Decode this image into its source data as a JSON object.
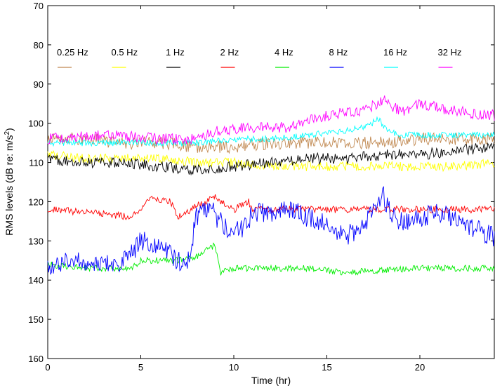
{
  "chart_data": {
    "type": "line",
    "xlabel": "Time (hr)",
    "ylabel_main": "RMS levels (dB re: m/s",
    "ylabel_sup": "2",
    "ylabel_close": ")",
    "xlim": [
      0,
      24
    ],
    "ylim": [
      70,
      160
    ],
    "y_inverted": true,
    "xticks": [
      0,
      5,
      10,
      15,
      20
    ],
    "yticks": [
      70,
      80,
      90,
      100,
      110,
      120,
      130,
      140,
      150,
      160
    ],
    "legend_placement": "top, inside plot",
    "series": [
      {
        "name": "0.25 Hz",
        "color": "#c08850",
        "noise": 1.6,
        "x": [
          0,
          2,
          4,
          6,
          8,
          10,
          12,
          14,
          16,
          18,
          20,
          22,
          24
        ],
        "y": [
          104,
          104,
          105,
          105,
          106,
          106,
          105,
          105,
          105,
          105,
          104,
          104,
          104
        ]
      },
      {
        "name": "0.5 Hz",
        "color": "#ffff00",
        "noise": 1.2,
        "x": [
          0,
          2,
          4,
          6,
          8,
          10,
          12,
          14,
          16,
          18,
          20,
          22,
          24
        ],
        "y": [
          108,
          109,
          109,
          109,
          110,
          110,
          111,
          111,
          111,
          111,
          111,
          111,
          110
        ]
      },
      {
        "name": "1 Hz",
        "color": "#000000",
        "noise": 1.4,
        "x": [
          0,
          2,
          4,
          6,
          8,
          10,
          12,
          14,
          16,
          18,
          20,
          22,
          24
        ],
        "y": [
          109,
          110,
          110,
          111,
          112,
          111,
          110,
          109,
          109,
          108,
          108,
          107,
          106
        ]
      },
      {
        "name": "2 Hz",
        "color": "#ff0000",
        "noise": 0.9,
        "x": [
          0,
          3,
          4.5,
          5.5,
          6.6,
          7,
          8,
          9,
          10,
          10.8,
          11,
          12,
          14,
          17,
          20,
          24
        ],
        "y": [
          122,
          123,
          124,
          119,
          120,
          124,
          121,
          119,
          122,
          120,
          122,
          122,
          122,
          122,
          122,
          122
        ]
      },
      {
        "name": "4 Hz",
        "color": "#00ee00",
        "noise": 0.8,
        "x": [
          0,
          2,
          4.5,
          5,
          7,
          8,
          9,
          9.3,
          10,
          12,
          14,
          16,
          20,
          24
        ],
        "y": [
          136,
          137,
          137,
          135,
          135,
          134,
          131,
          138,
          137,
          137,
          137,
          138,
          137,
          137
        ]
      },
      {
        "name": "8 Hz",
        "color": "#0000ff",
        "noise": 2.6,
        "x": [
          0,
          2,
          4,
          5,
          6,
          7,
          7.5,
          8,
          8.8,
          9,
          10,
          10.5,
          11,
          12,
          13,
          14,
          15,
          16,
          17,
          17.5,
          18,
          18.5,
          19,
          20,
          21,
          22,
          23,
          24
        ],
        "y": [
          136,
          135,
          136,
          130,
          131,
          135,
          136,
          124,
          121,
          124,
          128,
          127,
          123,
          123,
          122,
          124,
          126,
          129,
          126,
          122,
          118,
          124,
          125,
          124,
          123,
          124,
          127,
          129
        ]
      },
      {
        "name": "16 Hz",
        "color": "#00ffff",
        "noise": 0.8,
        "x": [
          0,
          4,
          8,
          10,
          12,
          14,
          16,
          17,
          17.8,
          18.3,
          19,
          22,
          24
        ],
        "y": [
          105,
          105,
          105,
          104,
          104,
          103,
          102,
          101,
          99,
          102,
          103,
          103,
          103
        ]
      },
      {
        "name": "32 Hz",
        "color": "#ff00ff",
        "noise": 1.4,
        "x": [
          0,
          3,
          6,
          8,
          9,
          11,
          13,
          14,
          15,
          16,
          17,
          18,
          19,
          20,
          21,
          22,
          24
        ],
        "y": [
          104,
          103,
          104,
          104,
          102,
          101,
          101,
          99,
          98,
          97,
          97,
          94,
          97,
          95,
          96,
          97,
          98
        ]
      }
    ]
  }
}
